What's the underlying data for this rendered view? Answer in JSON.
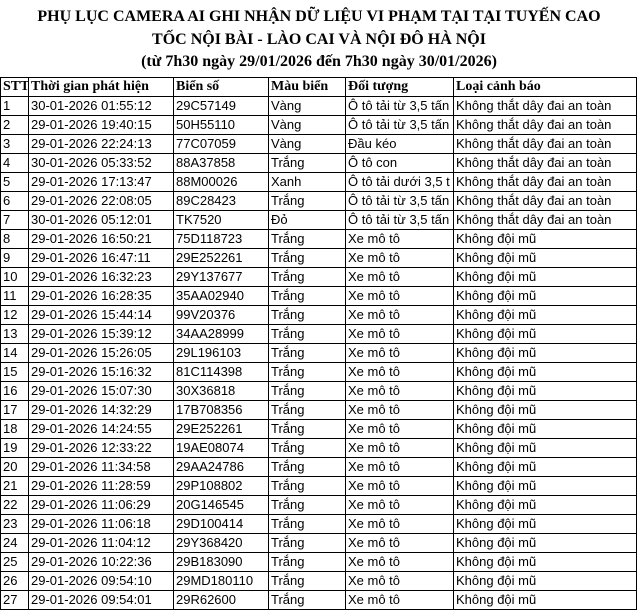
{
  "header": {
    "title_lines": [
      "PHỤ LỤC CAMERA AI GHI NHẬN DỮ LIỆU VI PHẠM TẠI TẠI TUYẾN CAO",
      "TỐC NỘI BÀI - LÀO CAI VÀ NỘI ĐÔ HÀ NỘI"
    ],
    "subtitle": "(từ 7h30 ngày 29/01/2026 đến 7h30 ngày 30/01/2026)"
  },
  "table": {
    "columns": [
      "STT",
      "Thời gian phát hiện",
      "Biển số",
      "Màu biển",
      "Đối tượng",
      "Loại cảnh báo"
    ],
    "rows": [
      [
        "1",
        "30-01-2026 01:55:12",
        "29C57149",
        "Vàng",
        "Ô tô tải từ 3,5 tấn",
        "Không thắt dây đai an toàn"
      ],
      [
        "2",
        "29-01-2026 19:40:15",
        "50H55110",
        "Vàng",
        "Ô tô tải từ 3,5 tấn",
        "Không thắt dây đai an toàn"
      ],
      [
        "3",
        "29-01-2026 22:24:13",
        "77C07059",
        "Vàng",
        "Đầu kéo",
        "Không thắt dây đai an toàn"
      ],
      [
        "4",
        "30-01-2026 05:33:52",
        "88A37858",
        "Trắng",
        "Ô tô con",
        "Không thắt dây đai an toàn"
      ],
      [
        "5",
        "29-01-2026 17:13:47",
        "88M00026",
        "Xanh",
        "Ô tô tải dưới 3,5 t",
        "Không thắt dây đai an toàn"
      ],
      [
        "6",
        "29-01-2026 22:08:05",
        "89C28423",
        "Trắng",
        "Ô tô tải từ 3,5 tấn",
        "Không thắt dây đai an toàn"
      ],
      [
        "7",
        "30-01-2026 05:12:01",
        "TK7520",
        "Đỏ",
        "Ô tô tải từ 3,5 tấn",
        "Không thắt dây đai an toàn"
      ],
      [
        "8",
        "29-01-2026 16:50:21",
        "75D118723",
        "Trắng",
        "Xe mô tô",
        "Không đội mũ"
      ],
      [
        "9",
        "29-01-2026 16:47:11",
        "29E252261",
        "Trắng",
        "Xe mô tô",
        "Không đội mũ"
      ],
      [
        "10",
        "29-01-2026 16:32:23",
        "29Y137677",
        "Trắng",
        "Xe mô tô",
        "Không đội mũ"
      ],
      [
        "11",
        "29-01-2026 16:28:35",
        "35AA02940",
        "Trắng",
        "Xe mô tô",
        "Không đội mũ"
      ],
      [
        "12",
        "29-01-2026 15:44:14",
        "99V20376",
        "Trắng",
        "Xe mô tô",
        "Không đội mũ"
      ],
      [
        "13",
        "29-01-2026 15:39:12",
        "34AA28999",
        "Trắng",
        "Xe mô tô",
        "Không đội mũ"
      ],
      [
        "14",
        "29-01-2026 15:26:05",
        "29L196103",
        "Trắng",
        "Xe mô tô",
        "Không đội mũ"
      ],
      [
        "15",
        "29-01-2026 15:16:32",
        "81C114398",
        "Trắng",
        "Xe mô tô",
        "Không đội mũ"
      ],
      [
        "16",
        "29-01-2026 15:07:30",
        "30X36818",
        "Trắng",
        "Xe mô tô",
        "Không đội mũ"
      ],
      [
        "17",
        "29-01-2026 14:32:29",
        "17B708356",
        "Trắng",
        "Xe mô tô",
        "Không đội mũ"
      ],
      [
        "18",
        "29-01-2026 14:24:55",
        "29E252261",
        "Trắng",
        "Xe mô tô",
        "Không đội mũ"
      ],
      [
        "19",
        "29-01-2026 12:33:22",
        "19AE08074",
        "Trắng",
        "Xe mô tô",
        "Không đội mũ"
      ],
      [
        "20",
        "29-01-2026 11:34:58",
        "29AA24786",
        "Trắng",
        "Xe mô tô",
        "Không đội mũ"
      ],
      [
        "21",
        "29-01-2026 11:28:59",
        "29P108802",
        "Trắng",
        "Xe mô tô",
        "Không đội mũ"
      ],
      [
        "22",
        "29-01-2026 11:06:29",
        "20G146545",
        "Trắng",
        "Xe mô tô",
        "Không đội mũ"
      ],
      [
        "23",
        "29-01-2026 11:06:18",
        "29D100414",
        "Trắng",
        "Xe mô tô",
        "Không đội mũ"
      ],
      [
        "24",
        "29-01-2026 11:04:12",
        "29Y368420",
        "Trắng",
        "Xe mô tô",
        "Không đội mũ"
      ],
      [
        "25",
        "29-01-2026 10:22:36",
        "29B183090",
        "Trắng",
        "Xe mô tô",
        "Không đội mũ"
      ],
      [
        "26",
        "29-01-2026 09:54:10",
        "29MD180110",
        "Trắng",
        "Xe mô tô",
        "Không đội mũ"
      ],
      [
        "27",
        "29-01-2026 09:54:01",
        "29R62600",
        "Trắng",
        "Xe mô tô",
        "Không đội mũ"
      ]
    ]
  }
}
